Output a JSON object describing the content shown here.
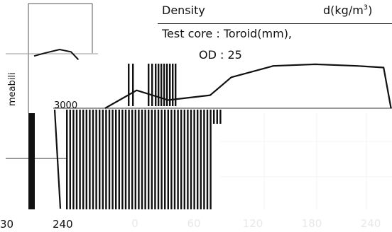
{
  "spec_table": {
    "density_label": "Density",
    "density_unit": "d(kg/m",
    "density_unit_sup": "3",
    "density_unit_close": ")",
    "test_core_label": "Test core : Toroid(mm),",
    "od_label": "OD : 25"
  },
  "chart_data": [
    {
      "type": "line",
      "ylabel_fragment": "meabili",
      "x_tick_labels": [
        "30",
        "240"
      ],
      "y_tick_label": "3000",
      "grid": true,
      "series": [
        {
          "points": [
            [
              0.1,
              0.58
            ],
            [
              0.3,
              0.78
            ],
            [
              0.55,
              1.0
            ],
            [
              0.75,
              0.85
            ],
            [
              0.88,
              0.35
            ]
          ]
        },
        {
          "points": [
            [
              0.0,
              0.0
            ],
            [
              0.3,
              0.55
            ],
            [
              0.6,
              0.25
            ],
            [
              1.0,
              0.4
            ],
            [
              1.2,
              0.95
            ],
            [
              1.6,
              1.3
            ],
            [
              2.0,
              1.35
            ],
            [
              2.4,
              1.3
            ],
            [
              2.65,
              1.25
            ],
            [
              2.72,
              0.0
            ]
          ]
        },
        {
          "points": [
            [
              0.0,
              1.0
            ],
            [
              0.1,
              0.0
            ]
          ]
        }
      ]
    },
    {
      "type": "bar",
      "x_tick_labels": [
        "0",
        "60",
        "120",
        "180",
        "240"
      ],
      "grid": true
    }
  ]
}
